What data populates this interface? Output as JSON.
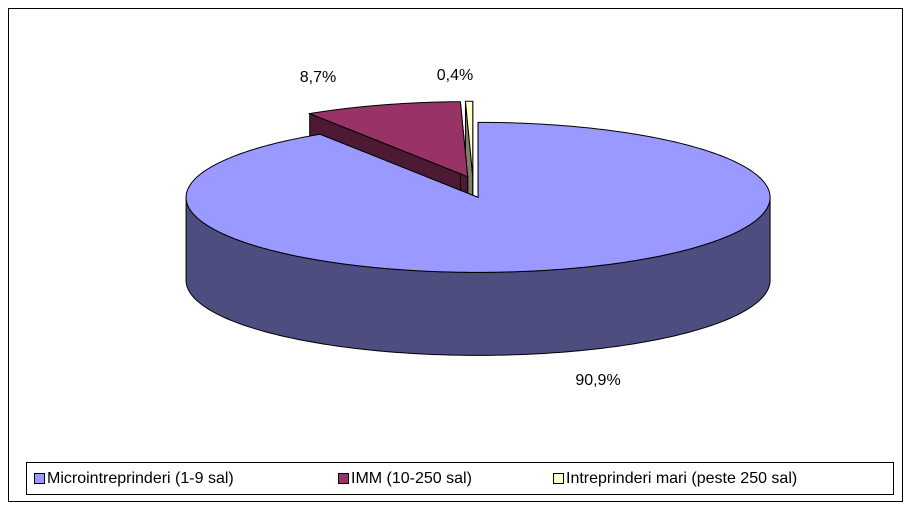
{
  "chart_data": {
    "type": "pie",
    "categories": [
      "Microintreprinderi (1-9 sal)",
      "IMM (10-250 sal)",
      "Intreprinderi mari (peste 250 sal)"
    ],
    "values": [
      90.9,
      8.7,
      0.4
    ],
    "value_labels": [
      "90,9%",
      "8,7%",
      "0,4%"
    ],
    "colors": [
      "#9999ff",
      "#993366",
      "#ffffcc"
    ],
    "side_colors": [
      "#4d4d80",
      "#4d1a33",
      "#808066"
    ],
    "legend": "bottom"
  }
}
